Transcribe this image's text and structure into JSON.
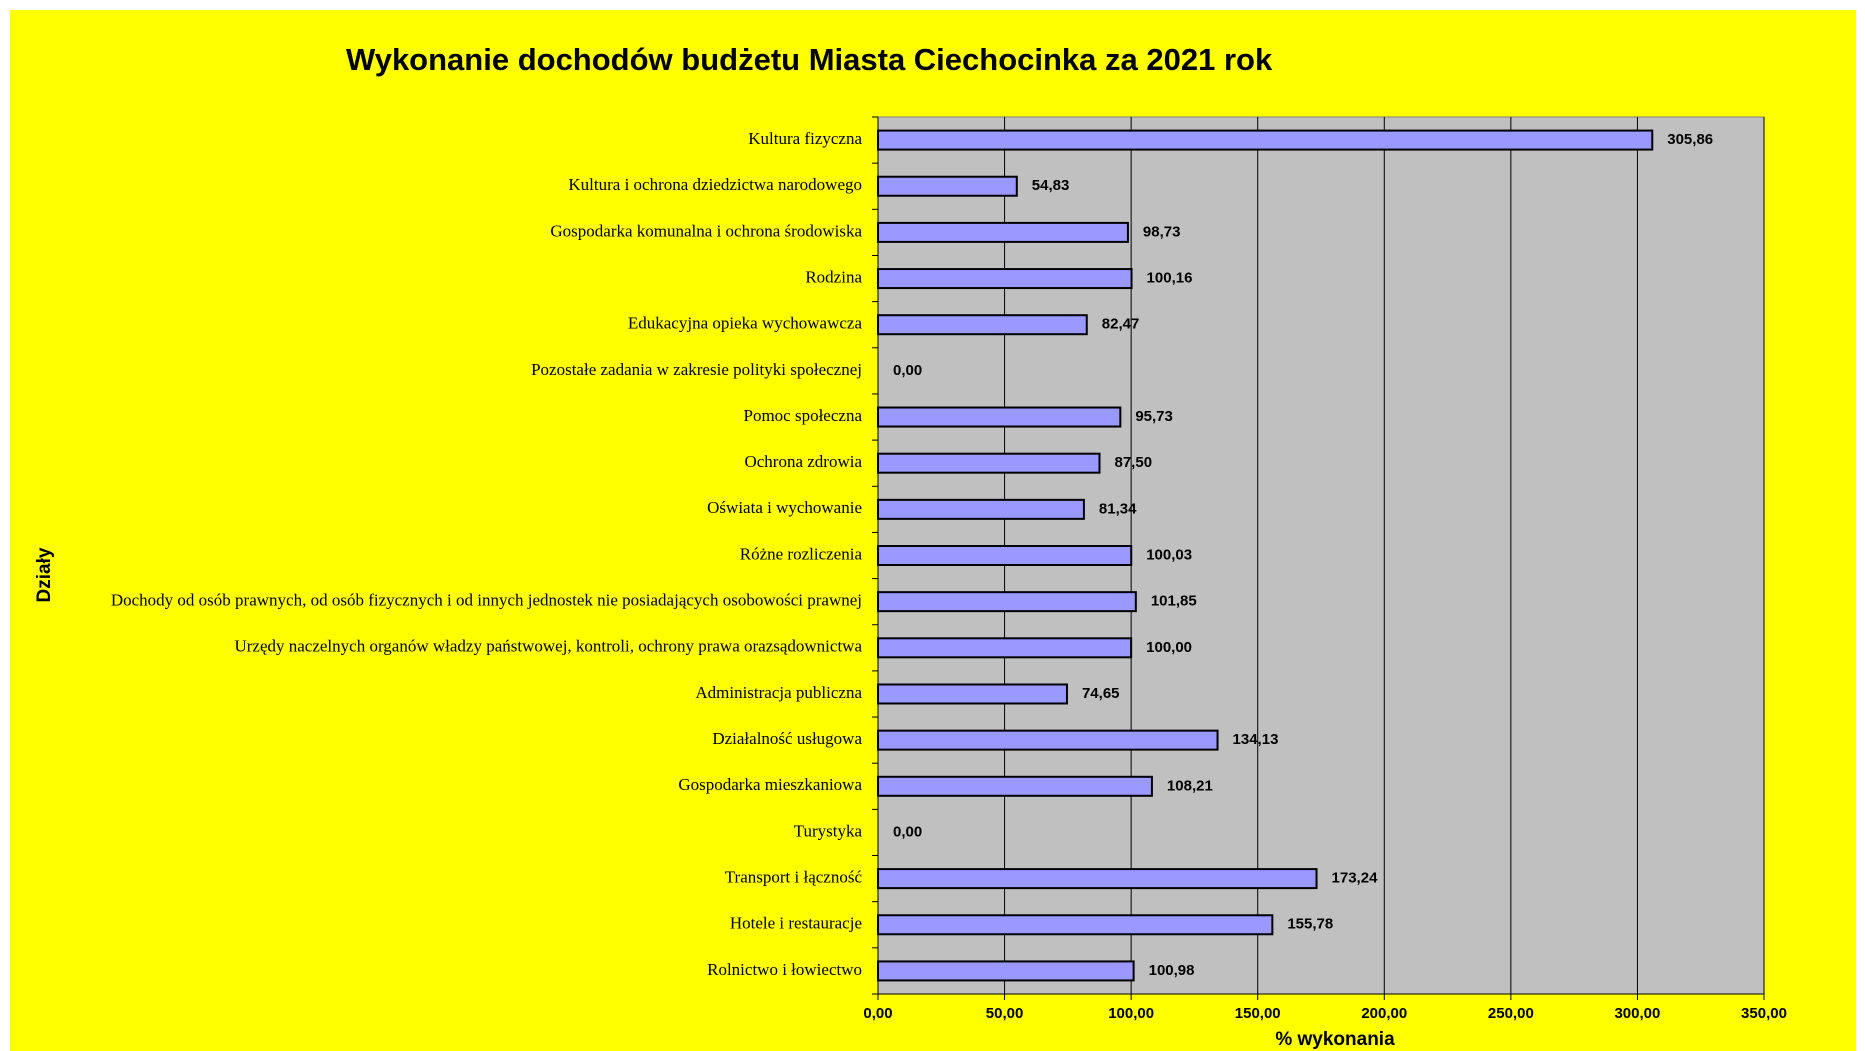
{
  "chart_data": {
    "type": "bar",
    "orientation": "horizontal",
    "title": "Wykonanie dochodów budżetu Miasta Ciechocinka za 2021 rok",
    "x_label": "% wykonania",
    "y_label": "Działy",
    "categories": [
      "Kultura fizyczna",
      "Kultura i ochrona dziedzictwa narodowego",
      "Gospodarka komunalna i ochrona środowiska",
      "Rodzina",
      "Edukacyjna opieka wychowawcza",
      "Pozostałe zadania w zakresie polityki społecznej",
      "Pomoc społeczna",
      "Ochrona zdrowia",
      "Oświata i wychowanie",
      "Różne rozliczenia",
      "Dochody od osób prawnych, od osób  fizycznych i od innych jednostek nie  posiadających osobowości prawnej",
      "Urzędy naczelnych organów władzy państwowej, kontroli, ochrony prawa orazsądownictwa",
      "Administracja publiczna",
      "Działalność usługowa",
      "Gospodarka mieszkaniowa",
      "Turystyka",
      "Transport i łączność",
      "Hotele i restauracje",
      "Rolnictwo i łowiectwo"
    ],
    "values": [
      305.86,
      54.83,
      98.73,
      100.16,
      82.47,
      0,
      95.73,
      87.5,
      81.34,
      100.03,
      101.85,
      100,
      74.65,
      134.13,
      108.21,
      0,
      173.24,
      155.78,
      100.98
    ],
    "value_labels": [
      "305,86",
      "54,83",
      "98,73",
      "100,16",
      "82,47",
      "0,00",
      "95,73",
      "87,50",
      "81,34",
      "100,03",
      "101,85",
      "100,00",
      "74,65",
      "134,13",
      "108,21",
      "0,00",
      "173,24",
      "155,78",
      "100,98"
    ],
    "color": "#9999ff",
    "xlim": [
      0,
      350
    ],
    "xticks": [
      {
        "value": 0,
        "label": "0,00"
      },
      {
        "value": 50,
        "label": "50,00"
      },
      {
        "value": 100,
        "label": "100,00"
      },
      {
        "value": 150,
        "label": "150,00"
      },
      {
        "value": 200,
        "label": "200,00"
      },
      {
        "value": 250,
        "label": "250,00"
      },
      {
        "value": 300,
        "label": "300,00"
      },
      {
        "value": 350,
        "label": "350,00"
      }
    ],
    "grid": true
  }
}
